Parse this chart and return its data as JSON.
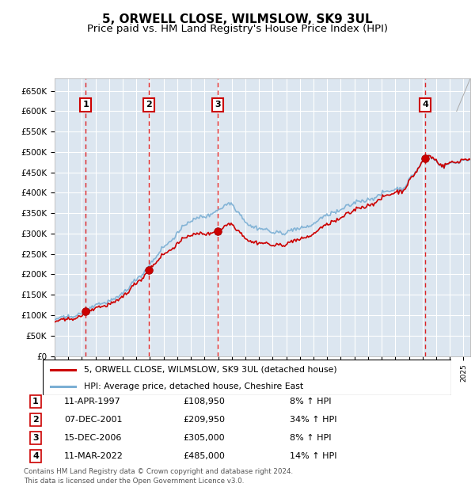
{
  "title": "5, ORWELL CLOSE, WILMSLOW, SK9 3UL",
  "subtitle": "Price paid vs. HM Land Registry's House Price Index (HPI)",
  "ylim": [
    0,
    680000
  ],
  "yticks": [
    0,
    50000,
    100000,
    150000,
    200000,
    250000,
    300000,
    350000,
    400000,
    450000,
    500000,
    550000,
    600000,
    650000
  ],
  "ytick_labels": [
    "£0",
    "£50K",
    "£100K",
    "£150K",
    "£200K",
    "£250K",
    "£300K",
    "£350K",
    "£400K",
    "£450K",
    "£500K",
    "£550K",
    "£600K",
    "£650K"
  ],
  "xlim_start": 1995.0,
  "xlim_end": 2025.5,
  "plot_bg_color": "#dce6f0",
  "grid_color": "#ffffff",
  "sale_color": "#cc0000",
  "hpi_color": "#7bafd4",
  "purchases": [
    {
      "num": 1,
      "date_str": "11-APR-1997",
      "date_x": 1997.27,
      "price": 108950,
      "pct": "8%",
      "dir": "↑"
    },
    {
      "num": 2,
      "date_str": "07-DEC-2001",
      "date_x": 2001.92,
      "price": 209950,
      "pct": "34%",
      "dir": "↑"
    },
    {
      "num": 3,
      "date_str": "15-DEC-2006",
      "date_x": 2006.95,
      "price": 305000,
      "pct": "8%",
      "dir": "↑"
    },
    {
      "num": 4,
      "date_str": "11-MAR-2022",
      "date_x": 2022.19,
      "price": 485000,
      "pct": "14%",
      "dir": "↑"
    }
  ],
  "legend1_label": "5, ORWELL CLOSE, WILMSLOW, SK9 3UL (detached house)",
  "legend2_label": "HPI: Average price, detached house, Cheshire East",
  "footer1": "Contains HM Land Registry data © Crown copyright and database right 2024.",
  "footer2": "This data is licensed under the Open Government Licence v3.0.",
  "title_fontsize": 11,
  "subtitle_fontsize": 9.5
}
